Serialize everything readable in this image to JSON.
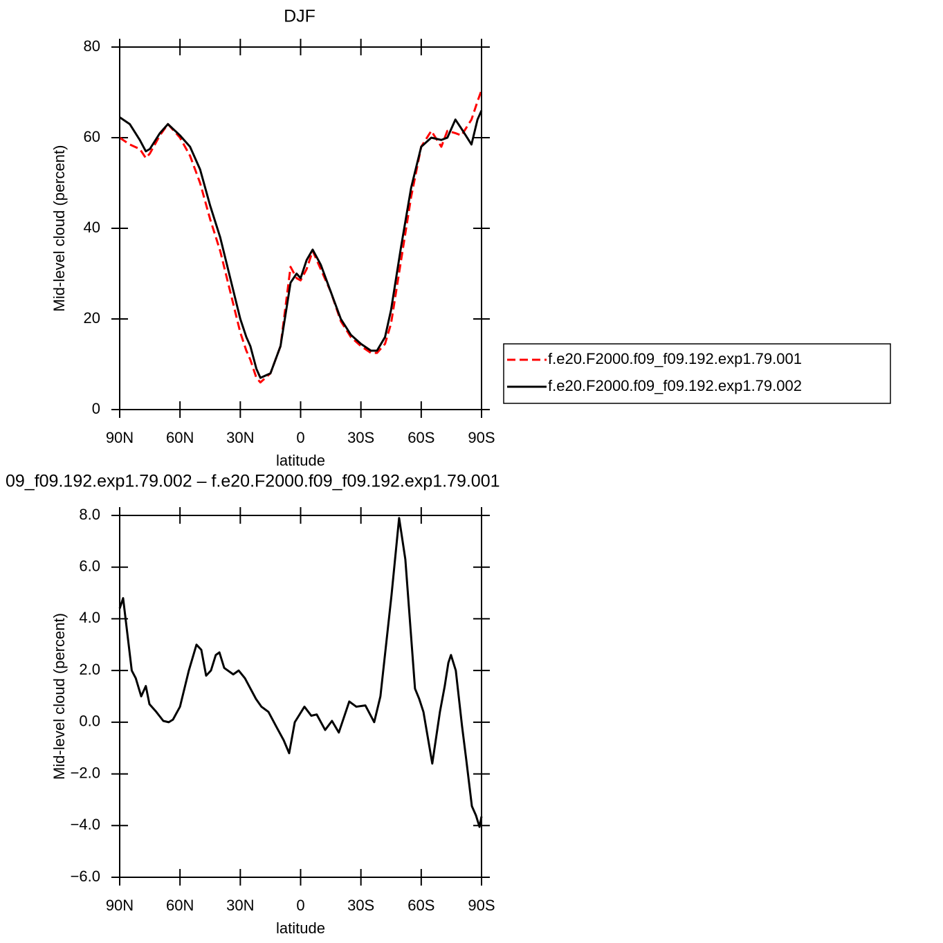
{
  "chart_data": [
    {
      "type": "line",
      "title": "DJF",
      "xlabel": "latitude",
      "ylabel": "Mid-level cloud (percent)",
      "x": [
        90,
        85,
        80,
        77,
        75,
        70,
        66,
        60,
        55,
        50,
        45,
        40,
        35,
        30,
        27,
        25,
        22,
        20,
        15,
        10,
        5,
        2,
        0,
        -3,
        -6,
        -10,
        -15,
        -20,
        -25,
        -30,
        -35,
        -38,
        -42,
        -45,
        -50,
        -55,
        -60,
        -65,
        -70,
        -73,
        -77,
        -80,
        -85,
        -88,
        -90
      ],
      "series": [
        {
          "name": "f.e20.F2000.f09_f09.192.exp1.79.001",
          "color": "#ff0000",
          "dash": true,
          "values": [
            60,
            58.5,
            57.5,
            55.5,
            56.5,
            60.5,
            63,
            60,
            56,
            50,
            42,
            35,
            26,
            17,
            13,
            11,
            7,
            6,
            8,
            14,
            31.5,
            29,
            28.5,
            31,
            35,
            31,
            26,
            19.5,
            16,
            14,
            12.5,
            12.5,
            14.5,
            19,
            33,
            47,
            58,
            61.5,
            58,
            61.5,
            61,
            60.5,
            64,
            68,
            70.5
          ]
        },
        {
          "name": "f.e20.F2000.f09_f09.192.exp1.79.002",
          "color": "#000000",
          "dash": false,
          "values": [
            64.5,
            63,
            59.5,
            57,
            57.5,
            61,
            63,
            60.5,
            58,
            53,
            45,
            38,
            29,
            20,
            16,
            14,
            9,
            7,
            8,
            14,
            28,
            30,
            29,
            33,
            35.3,
            32,
            26,
            20,
            16.5,
            14.5,
            13,
            13,
            16,
            22,
            36,
            49,
            58,
            60,
            59.5,
            60,
            64,
            62,
            58.5,
            64,
            66
          ]
        }
      ],
      "xlim": [
        90,
        -90
      ],
      "xticks": [
        {
          "value": 90,
          "label": "90N"
        },
        {
          "value": 60,
          "label": "60N"
        },
        {
          "value": 30,
          "label": "30N"
        },
        0,
        {
          "value": -30,
          "label": "30S"
        },
        {
          "value": -60,
          "label": "60S"
        },
        {
          "value": -90,
          "label": "90S"
        }
      ],
      "ylim": [
        0,
        80
      ],
      "yticks": [
        0,
        20,
        40,
        60,
        80
      ],
      "legend": "right"
    },
    {
      "type": "line",
      "title": "09_f09.192.exp1.79.002 – f.e20.F2000.f09_f09.192.exp1.79.001",
      "xlabel": "latitude",
      "ylabel": "Mid-level cloud (percent)",
      "x": [
        90,
        88.3,
        84,
        82,
        79.3,
        77,
        75.2,
        71.8,
        68.3,
        65.6,
        63.5,
        60,
        55.6,
        51.8,
        49.4,
        47,
        44.6,
        42.2,
        40.4,
        38,
        33.5,
        30.8,
        27.7,
        22.2,
        19.5,
        16,
        11.9,
        8.4,
        5.7,
        2.9,
        -1.9,
        -5.3,
        -8,
        -12.2,
        -15.6,
        -19,
        -24.2,
        -27.7,
        -32.2,
        -36.6,
        -39.7,
        -45.2,
        -49,
        -52.1,
        -56.9,
        -59,
        -61.1,
        -65.5,
        -69.3,
        -71.7,
        -73.5,
        -74.8,
        -77.2,
        -80.3,
        -82.4,
        -85.2,
        -87.2,
        -89,
        -90
      ],
      "color": "#000000",
      "values": [
        4.4,
        4.8,
        2.0,
        1.7,
        1.0,
        1.4,
        0.7,
        0.4,
        0.05,
        0,
        0.1,
        0.6,
        2.0,
        3.0,
        2.8,
        1.8,
        2.0,
        2.6,
        2.7,
        2.1,
        1.85,
        2.0,
        1.7,
        0.9,
        0.6,
        0.4,
        -0.2,
        -0.7,
        -1.2,
        0,
        0.6,
        0.25,
        0.3,
        -0.3,
        0.05,
        -0.4,
        0.8,
        0.6,
        0.65,
        0,
        1.0,
        4.9,
        7.9,
        6.3,
        1.3,
        0.9,
        0.4,
        -1.6,
        0.4,
        1.4,
        2.3,
        2.6,
        2.0,
        -0.15,
        -1.45,
        -3.25,
        -3.6,
        -4.05,
        -3.65
      ],
      "xlim": [
        90,
        -90
      ],
      "xticks": [
        {
          "value": 90,
          "label": "90N"
        },
        {
          "value": 60,
          "label": "60N"
        },
        {
          "value": 30,
          "label": "30N"
        },
        0,
        {
          "value": -30,
          "label": "30S"
        },
        {
          "value": -60,
          "label": "60S"
        },
        {
          "value": -90,
          "label": "90S"
        }
      ],
      "ylim": [
        -6,
        8
      ],
      "yticks": [
        {
          "value": -6,
          "label": "−6.0"
        },
        {
          "value": -4,
          "label": "−4.0"
        },
        {
          "value": -2,
          "label": "−2.0"
        },
        {
          "value": 0,
          "label": "0.0"
        },
        {
          "value": 2,
          "label": "2.0"
        },
        {
          "value": 4,
          "label": "4.0"
        },
        {
          "value": 6,
          "label": "6.0"
        },
        {
          "value": 8,
          "label": "8.0"
        }
      ]
    }
  ]
}
